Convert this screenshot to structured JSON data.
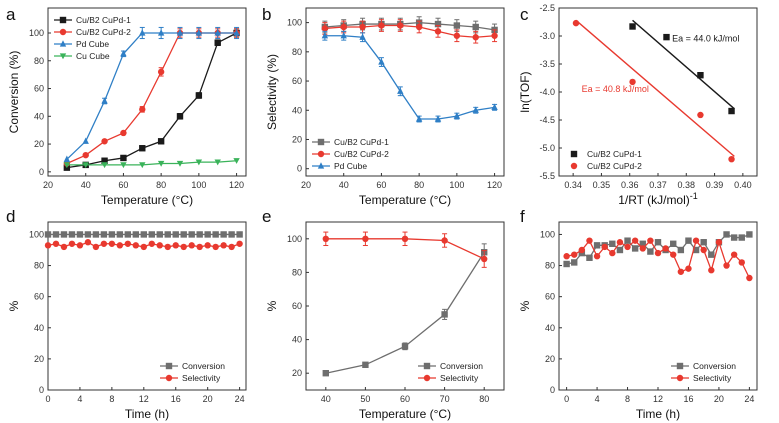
{
  "colors": {
    "black": "#1a1a1a",
    "red": "#e8392f",
    "blue": "#2f7fc6",
    "green": "#3ab35a",
    "gray": "#6e6e6e",
    "axis": "#333333"
  },
  "chart_data": [
    {
      "id": "a",
      "panel_label": "a",
      "type": "line",
      "xlabel": "Temperature (°C)",
      "ylabel": "Conversion (%)",
      "xlim": [
        20,
        125
      ],
      "ylim": [
        -3,
        118
      ],
      "xticks": [
        20,
        40,
        60,
        80,
        100,
        120
      ],
      "yticks": [
        0,
        20,
        40,
        60,
        80,
        100
      ],
      "legend": "top-left",
      "series": [
        {
          "name": "Cu/B2 CuPd-1",
          "color": "#1a1a1a",
          "marker": "square",
          "x": [
            30,
            40,
            50,
            60,
            70,
            80,
            90,
            100,
            110,
            120
          ],
          "y": [
            3,
            5,
            8,
            10,
            17,
            22,
            40,
            55,
            93,
            100
          ],
          "err": [
            0,
            0,
            0,
            0,
            0,
            1,
            2,
            2,
            2,
            3
          ]
        },
        {
          "name": "Cu/B2 CuPd-2",
          "color": "#e8392f",
          "marker": "circle",
          "x": [
            30,
            40,
            50,
            60,
            70,
            80,
            90,
            100,
            110,
            120
          ],
          "y": [
            6,
            12,
            22,
            28,
            45,
            72,
            100,
            100,
            100,
            100
          ],
          "err": [
            0,
            0,
            0,
            0,
            2,
            3,
            3,
            3,
            3,
            3
          ]
        },
        {
          "name": "Pd Cube",
          "color": "#2f7fc6",
          "marker": "triangle",
          "x": [
            30,
            40,
            50,
            60,
            70,
            80,
            90,
            100,
            110,
            120
          ],
          "y": [
            9,
            22,
            51,
            85,
            100,
            100,
            100,
            100,
            100,
            100
          ],
          "err": [
            0,
            0,
            2,
            2,
            4,
            4,
            4,
            4,
            4,
            4
          ]
        },
        {
          "name": "Cu Cube",
          "color": "#3ab35a",
          "marker": "triangle-down",
          "x": [
            30,
            40,
            50,
            60,
            70,
            80,
            90,
            100,
            110,
            120
          ],
          "y": [
            5,
            5,
            5,
            5,
            5,
            6,
            6,
            7,
            7,
            8
          ],
          "err": [
            0,
            0,
            0,
            0,
            0,
            0,
            0,
            0,
            0,
            0
          ]
        }
      ]
    },
    {
      "id": "b",
      "panel_label": "b",
      "type": "line",
      "xlabel": "Temperature (°C)",
      "ylabel": "Selectivity (%)",
      "xlim": [
        20,
        125
      ],
      "ylim": [
        -5,
        110
      ],
      "xticks": [
        20,
        40,
        60,
        80,
        100,
        120
      ],
      "yticks": [
        0,
        20,
        40,
        60,
        80,
        100
      ],
      "legend": "bottom-left",
      "series": [
        {
          "name": "Cu/B2 CuPd-1",
          "color": "#6e6e6e",
          "marker": "square",
          "x": [
            30,
            40,
            50,
            60,
            70,
            80,
            90,
            100,
            110,
            120
          ],
          "y": [
            97,
            98,
            99,
            99,
            99,
            100,
            99,
            98,
            97,
            95
          ],
          "err": [
            4,
            4,
            4,
            4,
            4,
            4,
            4,
            4,
            4,
            4
          ]
        },
        {
          "name": "Cu/B2 CuPd-2",
          "color": "#e8392f",
          "marker": "circle",
          "x": [
            30,
            40,
            50,
            60,
            70,
            80,
            90,
            100,
            110,
            120
          ],
          "y": [
            96,
            97,
            97,
            98,
            98,
            97,
            94,
            91,
            90,
            91
          ],
          "err": [
            4,
            4,
            4,
            4,
            4,
            4,
            4,
            4,
            4,
            4
          ]
        },
        {
          "name": "Pd Cube",
          "color": "#2f7fc6",
          "marker": "triangle",
          "x": [
            30,
            40,
            50,
            60,
            70,
            80,
            90,
            100,
            110,
            120
          ],
          "y": [
            91,
            91,
            90,
            73,
            53,
            34,
            34,
            36,
            40,
            42
          ],
          "err": [
            3,
            3,
            3,
            3,
            3,
            2,
            2,
            2,
            2,
            2
          ]
        }
      ]
    },
    {
      "id": "c",
      "panel_label": "c",
      "type": "scatter",
      "xlabel": "1/RT (kJ/mol)",
      "xlabel_sup": "-1",
      "ylabel": "ln(TOF)",
      "xlim": [
        0.335,
        0.405
      ],
      "ylim": [
        -5.5,
        -2.5
      ],
      "xticks": [
        0.34,
        0.35,
        0.36,
        0.37,
        0.38,
        0.39,
        0.4
      ],
      "yticks": [
        -2.5,
        -3.0,
        -3.5,
        -4.0,
        -4.5,
        -5.0,
        -5.5
      ],
      "tick_labels_x": [
        "0.34",
        "0.35",
        "0.36",
        "0.37",
        "0.38",
        "0.39",
        "0.40"
      ],
      "tick_labels_y": [
        "-2.5",
        "-3.0",
        "-3.5",
        "-4.0",
        "-4.5",
        "-5.0",
        "-5.5"
      ],
      "legend": "bottom-left",
      "annotations": [
        {
          "text": "Ea = 44.0 kJ/mol",
          "color": "#1a1a1a",
          "x": 0.375,
          "y": -3.1
        },
        {
          "text": "Ea = 40.8 kJ/mol",
          "color": "#e8392f",
          "x": 0.343,
          "y": -4.0
        }
      ],
      "series": [
        {
          "name": "Cu/B2 CuPd-1",
          "color": "#1a1a1a",
          "marker": "square",
          "x": [
            0.361,
            0.373,
            0.385,
            0.396
          ],
          "y": [
            -2.83,
            -3.02,
            -3.7,
            -4.34
          ],
          "fit": [
            [
              0.361,
              -2.72
            ],
            [
              0.397,
              -4.3
            ]
          ]
        },
        {
          "name": "Cu/B2 CuPd-2",
          "color": "#e8392f",
          "marker": "circle",
          "x": [
            0.341,
            0.361,
            0.385,
            0.396
          ],
          "y": [
            -2.77,
            -3.82,
            -4.41,
            -5.2
          ],
          "fit": [
            [
              0.341,
              -2.72
            ],
            [
              0.397,
              -5.15
            ]
          ]
        }
      ]
    },
    {
      "id": "d",
      "panel_label": "d",
      "type": "line",
      "xlabel": "Time (h)",
      "ylabel": "%",
      "xlim": [
        0,
        24.8
      ],
      "ylim": [
        0,
        108
      ],
      "xticks": [
        0,
        4,
        8,
        12,
        16,
        20,
        24
      ],
      "yticks": [
        0,
        20,
        40,
        60,
        80,
        100
      ],
      "legend": "bottom-right",
      "series": [
        {
          "name": "Conversion",
          "color": "#6e6e6e",
          "marker": "square",
          "x": [
            0,
            1,
            2,
            3,
            4,
            5,
            6,
            7,
            8,
            9,
            10,
            11,
            12,
            13,
            14,
            15,
            16,
            17,
            18,
            19,
            20,
            21,
            22,
            23,
            24
          ],
          "y": [
            100,
            100,
            100,
            100,
            100,
            100,
            100,
            100,
            100,
            100,
            100,
            100,
            100,
            100,
            100,
            100,
            100,
            100,
            100,
            100,
            100,
            100,
            100,
            100,
            100
          ]
        },
        {
          "name": "Selectivity",
          "color": "#e8392f",
          "marker": "circle",
          "x": [
            0,
            1,
            2,
            3,
            4,
            5,
            6,
            7,
            8,
            9,
            10,
            11,
            12,
            13,
            14,
            15,
            16,
            17,
            18,
            19,
            20,
            21,
            22,
            23,
            24
          ],
          "y": [
            93,
            94,
            92,
            94,
            93,
            95,
            92,
            94,
            94,
            93,
            94,
            93,
            92,
            94,
            93,
            92,
            93,
            92,
            93,
            92,
            93,
            92,
            93,
            92,
            94
          ]
        }
      ]
    },
    {
      "id": "e",
      "panel_label": "e",
      "type": "line",
      "xlabel": "Temperature (°C)",
      "ylabel": "%",
      "xlim": [
        35,
        85
      ],
      "ylim": [
        10,
        110
      ],
      "xticks": [
        40,
        50,
        60,
        70,
        80
      ],
      "yticks": [
        20,
        40,
        60,
        80,
        100
      ],
      "legend": "bottom-right",
      "series": [
        {
          "name": "Conversion",
          "color": "#6e6e6e",
          "marker": "square",
          "x": [
            40,
            50,
            60,
            70,
            80
          ],
          "y": [
            20,
            25,
            36,
            55,
            92
          ],
          "err": [
            1,
            1,
            2,
            3,
            5
          ]
        },
        {
          "name": "Selectivity",
          "color": "#e8392f",
          "marker": "circle",
          "x": [
            40,
            50,
            60,
            70,
            80
          ],
          "y": [
            100,
            100,
            100,
            99,
            88
          ],
          "err": [
            4,
            4,
            4,
            4,
            5
          ]
        }
      ]
    },
    {
      "id": "f",
      "panel_label": "f",
      "type": "line",
      "xlabel": "Time (h)",
      "ylabel": "%",
      "xlim": [
        -1,
        25
      ],
      "ylim": [
        0,
        108
      ],
      "xticks": [
        0,
        4,
        8,
        12,
        16,
        20,
        24
      ],
      "yticks": [
        0,
        20,
        40,
        60,
        80,
        100
      ],
      "legend": "bottom-right",
      "series": [
        {
          "name": "Conversion",
          "color": "#6e6e6e",
          "marker": "square",
          "x": [
            0,
            1,
            2,
            3,
            4,
            5,
            6,
            7,
            8,
            9,
            10,
            11,
            12,
            13,
            14,
            15,
            16,
            17,
            18,
            19,
            20,
            21,
            22,
            23,
            24
          ],
          "y": [
            81,
            82,
            88,
            85,
            93,
            93,
            94,
            90,
            96,
            91,
            94,
            89,
            95,
            90,
            94,
            90,
            96,
            90,
            95,
            87,
            95,
            100,
            98,
            98,
            100
          ]
        },
        {
          "name": "Selectivity",
          "color": "#e8392f",
          "marker": "circle",
          "x": [
            0,
            1,
            2,
            3,
            4,
            5,
            6,
            7,
            8,
            9,
            10,
            11,
            12,
            13,
            14,
            15,
            16,
            17,
            18,
            19,
            20,
            21,
            22,
            23,
            24
          ],
          "y": [
            86,
            87,
            90,
            96,
            86,
            92,
            88,
            95,
            92,
            96,
            91,
            96,
            88,
            91,
            87,
            76,
            78,
            96,
            90,
            77,
            95,
            80,
            87,
            82,
            72
          ]
        }
      ]
    }
  ]
}
